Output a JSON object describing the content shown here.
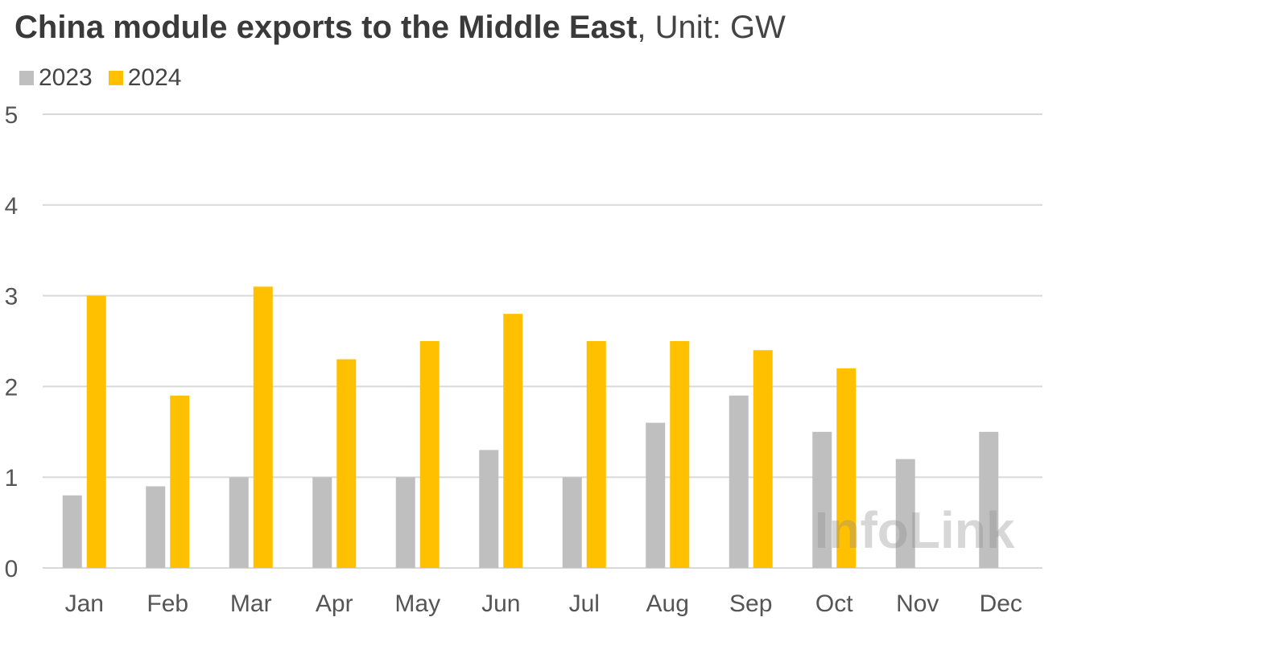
{
  "title": "China module exports to the Middle East",
  "title_unit": ", Unit: GW",
  "watermark": "InfoLink",
  "chart_data": {
    "type": "bar",
    "categories": [
      "Jan",
      "Feb",
      "Mar",
      "Apr",
      "May",
      "Jun",
      "Jul",
      "Aug",
      "Sep",
      "Oct",
      "Nov",
      "Dec"
    ],
    "series": [
      {
        "name": "2023",
        "color": "#bfbfbf",
        "values": [
          0.8,
          0.9,
          1.0,
          1.0,
          1.0,
          1.3,
          1.0,
          1.6,
          1.9,
          1.5,
          1.2,
          1.5
        ]
      },
      {
        "name": "2024",
        "color": "#ffc000",
        "values": [
          3.0,
          1.9,
          3.1,
          2.3,
          2.5,
          2.8,
          2.5,
          2.5,
          2.4,
          2.2,
          null,
          null
        ]
      }
    ],
    "ylim": [
      0,
      5
    ],
    "yticks": [
      "0",
      "1",
      "2",
      "3",
      "4",
      "5"
    ],
    "grid": true,
    "legend_position": "top-left"
  }
}
